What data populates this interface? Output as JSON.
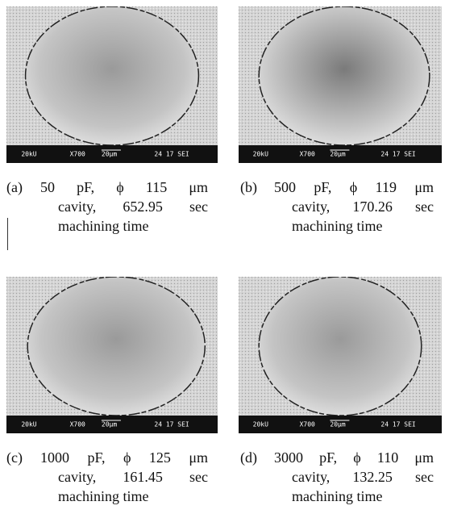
{
  "panels": [
    {
      "label": "(a)",
      "lines": [
        "50 pF, ϕ 115 μm",
        "cavity, 652.95 sec",
        "machining time"
      ],
      "bar": [
        "20kU",
        "X700",
        "20µm",
        "24 17 SEI"
      ]
    },
    {
      "label": "(b)",
      "lines": [
        "500 pF, ϕ 119 μm",
        "cavity, 170.26 sec",
        "machining time"
      ],
      "bar": [
        "20kU",
        "X700",
        "20µm",
        "24 17 SEI"
      ]
    },
    {
      "label": "(c)",
      "lines": [
        "1000 pF, ϕ 125 μm",
        "cavity, 161.45 sec",
        "machining time"
      ],
      "bar": [
        "20kU",
        "X700",
        "20µm",
        "24 17 SEI"
      ]
    },
    {
      "label": "(d)",
      "lines": [
        "3000 pF, ϕ 110 μm",
        "cavity, 132.25 sec",
        "machining time"
      ],
      "bar": [
        "20kU",
        "X700",
        "20µm",
        "24 17 SEI"
      ]
    }
  ]
}
